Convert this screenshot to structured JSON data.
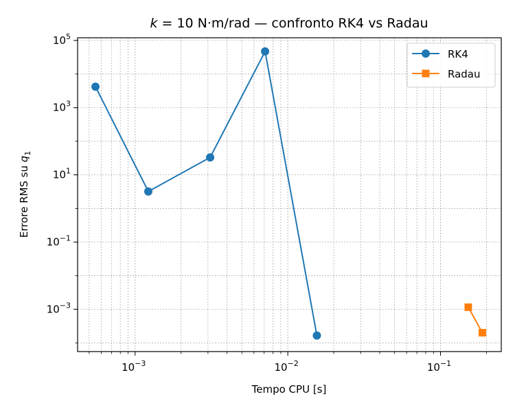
{
  "chart_data": {
    "type": "line",
    "title_parts": {
      "variable": "k",
      "equals": " = 10 N·m/rad — confronto RK4 vs Radau"
    },
    "xlabel": "Tempo CPU [s]",
    "ylabel_parts": {
      "text": "Errore RMS su ",
      "variable": "q",
      "subscript": "1"
    },
    "x_scale": "log",
    "y_scale": "log",
    "xlim": [
      0.00042,
      0.25
    ],
    "ylim": [
      5.5e-05,
      120000
    ],
    "x_major_ticks": [
      {
        "value": 0.001,
        "label": "10",
        "exp": "−3"
      },
      {
        "value": 0.01,
        "label": "10",
        "exp": "−2"
      },
      {
        "value": 0.1,
        "label": "10",
        "exp": "−1"
      }
    ],
    "y_major_ticks": [
      {
        "value": 0.001,
        "label": "10",
        "exp": "−3"
      },
      {
        "value": 0.1,
        "label": "10",
        "exp": "−1"
      },
      {
        "value": 10,
        "label": "10",
        "exp": "1"
      },
      {
        "value": 1000,
        "label": "10",
        "exp": "3"
      },
      {
        "value": 100000,
        "label": "10",
        "exp": "5"
      }
    ],
    "grid": true,
    "legend_position": "top-right",
    "series": [
      {
        "name": "RK4",
        "color": "#1f77b4",
        "marker": "circle",
        "x": [
          0.00055,
          0.00122,
          0.0031,
          0.0071,
          0.0155
        ],
        "y": [
          4200,
          3.2,
          33,
          47000,
          0.000165
        ]
      },
      {
        "name": "Radau",
        "color": "#ff7f0e",
        "marker": "square",
        "x": [
          0.152,
          0.188
        ],
        "y": [
          0.00115,
          0.0002
        ]
      }
    ]
  }
}
